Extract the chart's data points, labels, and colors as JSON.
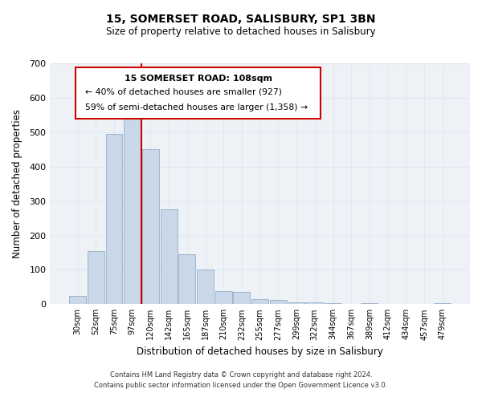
{
  "title": "15, SOMERSET ROAD, SALISBURY, SP1 3BN",
  "subtitle": "Size of property relative to detached houses in Salisbury",
  "xlabel": "Distribution of detached houses by size in Salisbury",
  "ylabel": "Number of detached properties",
  "bar_labels": [
    "30sqm",
    "52sqm",
    "75sqm",
    "97sqm",
    "120sqm",
    "142sqm",
    "165sqm",
    "187sqm",
    "210sqm",
    "232sqm",
    "255sqm",
    "277sqm",
    "299sqm",
    "322sqm",
    "344sqm",
    "367sqm",
    "389sqm",
    "412sqm",
    "434sqm",
    "457sqm",
    "479sqm"
  ],
  "bar_values": [
    25,
    155,
    495,
    570,
    450,
    275,
    145,
    100,
    37,
    35,
    14,
    12,
    5,
    5,
    4,
    0,
    3,
    0,
    0,
    0,
    3
  ],
  "bar_color": "#c8d8e8",
  "bar_edge_color": "#a0b4cc",
  "vline_x_idx": 3.5,
  "vline_color": "#cc0000",
  "ylim": [
    0,
    700
  ],
  "yticks": [
    0,
    100,
    200,
    300,
    400,
    500,
    600,
    700
  ],
  "annotation_title": "15 SOMERSET ROAD: 108sqm",
  "annotation_line1": "← 40% of detached houses are smaller (927)",
  "annotation_line2": "59% of semi-detached houses are larger (1,358) →",
  "footer1": "Contains HM Land Registry data © Crown copyright and database right 2024.",
  "footer2": "Contains public sector information licensed under the Open Government Licence v3.0.",
  "grid_color": "#dce8f0",
  "background_color": "#eef2f7"
}
